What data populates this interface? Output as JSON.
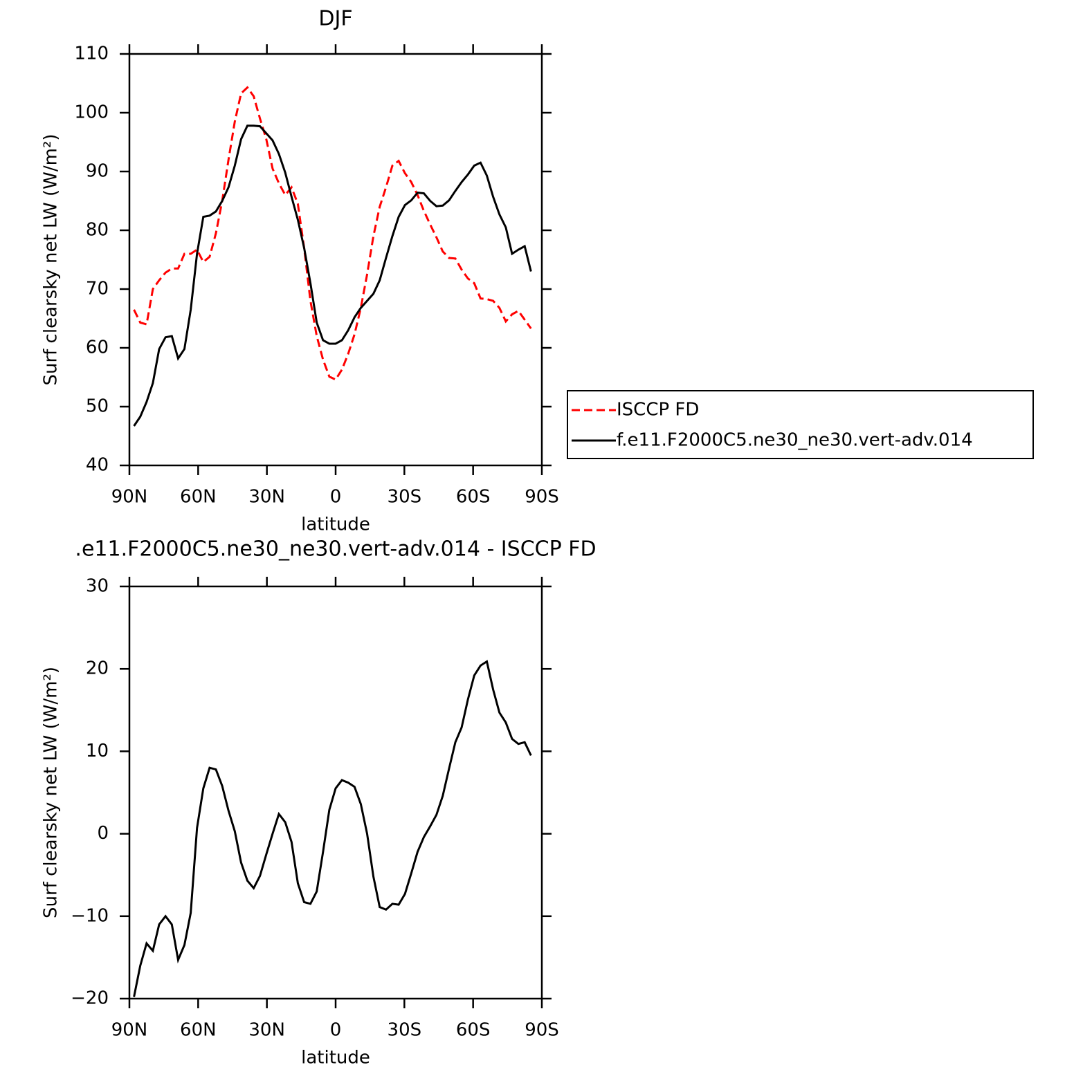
{
  "chart_data": [
    {
      "type": "line",
      "title": "DJF",
      "x_label": "latitude",
      "y_label": "Surf clearsky net LW (W/m²)",
      "x": [
        88,
        85.25,
        82.5,
        79.75,
        77,
        74.25,
        71.5,
        68.75,
        66,
        63.25,
        60.5,
        57.75,
        55,
        52.25,
        49.5,
        46.75,
        44,
        41.25,
        38.5,
        35.75,
        33,
        30.25,
        27.5,
        24.75,
        22,
        19.25,
        16.5,
        13.75,
        11,
        8.25,
        5.5,
        2.75,
        0,
        -2.75,
        -5.5,
        -8.25,
        -11,
        -13.75,
        -16.5,
        -19.25,
        -22,
        -24.75,
        -27.5,
        -30.25,
        -33,
        -35.75,
        -38.5,
        -41.25,
        -44,
        -46.75,
        -49.5,
        -52.25,
        -55,
        -57.75,
        -60.5,
        -63.25,
        -66,
        -68.75,
        -71.5,
        -74.25,
        -77,
        -79.75,
        -82.5,
        -85.25
      ],
      "xlim": [
        90,
        -90
      ],
      "xticks": [
        {
          "value": 90,
          "label": "90N"
        },
        {
          "value": 60,
          "label": "60N"
        },
        {
          "value": 30,
          "label": "30N"
        },
        0,
        {
          "value": -30,
          "label": "30S"
        },
        {
          "value": -60,
          "label": "60S"
        },
        {
          "value": -90,
          "label": "90S"
        }
      ],
      "ylim": [
        40,
        110
      ],
      "yticks": [
        40,
        50,
        60,
        70,
        80,
        90,
        100,
        110
      ],
      "legend": "outside-right",
      "series": [
        {
          "name": "ISCCP FD",
          "color": "#ff0000",
          "dash": "dashed",
          "values": [
            66.5,
            64.3,
            64,
            70,
            71.5,
            72.8,
            73.5,
            73.5,
            76,
            76,
            76.7,
            74.6,
            75.5,
            79.5,
            85,
            92,
            98.5,
            103.3,
            104.3,
            102.8,
            99,
            95.5,
            90.5,
            88,
            86,
            87.3,
            84.5,
            77,
            68,
            62,
            58,
            55.1,
            54.6,
            56.3,
            59,
            62.3,
            66.8,
            72.5,
            79,
            84,
            87.3,
            91,
            91.8,
            89.7,
            88.2,
            86,
            83.3,
            81,
            78.8,
            76.4,
            75.3,
            75.2,
            73.3,
            71.8,
            71,
            68.4,
            68.3,
            68,
            66.8,
            64.5,
            65.7,
            66.3,
            64.8,
            63.3
          ]
        },
        {
          "name": "f.e11.F2000C5.ne30_ne30.vert-adv.014",
          "color": "#000000",
          "dash": "solid",
          "values": [
            46.7,
            48.3,
            50.8,
            54,
            59.8,
            61.8,
            62,
            58.2,
            59.8,
            66.5,
            76,
            82.3,
            82.5,
            83.2,
            85,
            87.3,
            91,
            95.5,
            97.8,
            97.8,
            97.7,
            96.5,
            95.3,
            93,
            89.8,
            85.7,
            81.8,
            77,
            71,
            64.3,
            61.3,
            60.7,
            60.7,
            61.3,
            63,
            65.2,
            66.8,
            68,
            69.2,
            71.5,
            75.3,
            79,
            82.3,
            84.3,
            85.1,
            86.4,
            86.3,
            85,
            84.1,
            84.2,
            85.1,
            86.7,
            88.2,
            89.5,
            91,
            91.5,
            89.3,
            85.7,
            82.7,
            80.5,
            76,
            76.7,
            77.3,
            73
          ]
        }
      ]
    },
    {
      "type": "line",
      "title": ".e11.F2000C5.ne30_ne30.vert-adv.014 - ISCCP FD",
      "x_label": "latitude",
      "y_label": "Surf clearsky net LW (W/m²)",
      "x": [
        88,
        85.25,
        82.5,
        79.75,
        77,
        74.25,
        71.5,
        68.75,
        66,
        63.25,
        60.5,
        57.75,
        55,
        52.25,
        49.5,
        46.75,
        44,
        41.25,
        38.5,
        35.75,
        33,
        30.25,
        27.5,
        24.75,
        22,
        19.25,
        16.5,
        13.75,
        11,
        8.25,
        5.5,
        2.75,
        0,
        -2.75,
        -5.5,
        -8.25,
        -11,
        -13.75,
        -16.5,
        -19.25,
        -22,
        -24.75,
        -27.5,
        -30.25,
        -33,
        -35.75,
        -38.5,
        -41.25,
        -44,
        -46.75,
        -49.5,
        -52.25,
        -55,
        -57.75,
        -60.5,
        -63.25,
        -66,
        -68.75,
        -71.5,
        -74.25,
        -77,
        -79.75,
        -82.5,
        -85.25
      ],
      "xlim": [
        90,
        -90
      ],
      "xticks": [
        {
          "value": 90,
          "label": "90N"
        },
        {
          "value": 60,
          "label": "60N"
        },
        {
          "value": 30,
          "label": "30N"
        },
        0,
        {
          "value": -30,
          "label": "30S"
        },
        {
          "value": -60,
          "label": "60S"
        },
        {
          "value": -90,
          "label": "90S"
        }
      ],
      "ylim": [
        -20,
        30
      ],
      "yticks": [
        {
          "value": -20,
          "label": "−20"
        },
        {
          "value": -10,
          "label": "−10"
        },
        0,
        10,
        20,
        30
      ],
      "series": [
        {
          "color": "#000000",
          "dash": "solid",
          "values": [
            -19.8,
            -16,
            -13.3,
            -14.2,
            -11,
            -10,
            -11,
            -15.3,
            -13.5,
            -9.6,
            0.7,
            5.5,
            8,
            7.8,
            5.8,
            2.8,
            0.3,
            -3.5,
            -5.7,
            -6.6,
            -5.1,
            -2.5,
            0,
            2.4,
            1.4,
            -1,
            -6,
            -8.3,
            -8.5,
            -7,
            -2.2,
            2.9,
            5.5,
            6.5,
            6.2,
            5.7,
            3.6,
            0,
            -5.2,
            -8.9,
            -9.2,
            -8.5,
            -8.6,
            -7.3,
            -4.8,
            -2.2,
            -0.4,
            0.9,
            2.3,
            4.6,
            7.9,
            11.1,
            12.9,
            16.3,
            19.2,
            20.4,
            20.9,
            17.5,
            14.7,
            13.5,
            11.5,
            10.9,
            11.1,
            9.5
          ]
        }
      ]
    }
  ]
}
